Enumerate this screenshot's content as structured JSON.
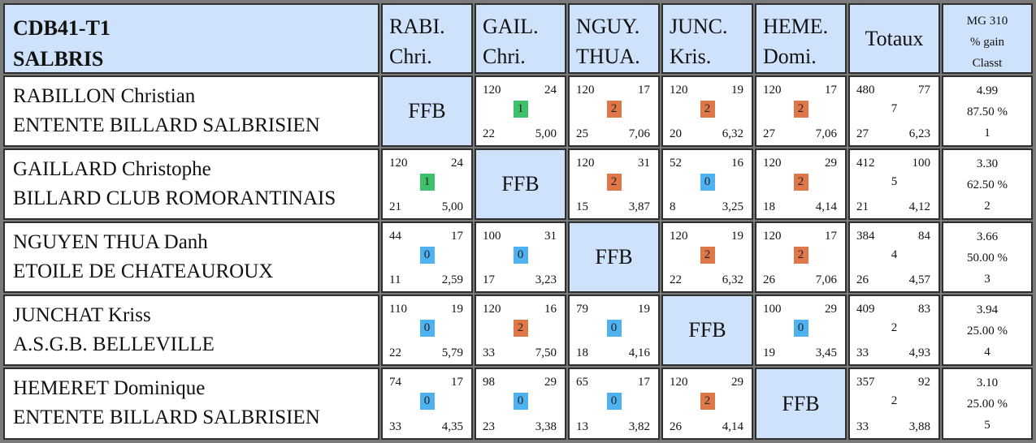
{
  "header": {
    "corner": [
      "CDB41-T1",
      "SALBRIS"
    ],
    "columns": [
      [
        "RABI.",
        "Chri."
      ],
      [
        "GAIL.",
        "Chri."
      ],
      [
        "NGUY.",
        "THUA."
      ],
      [
        "JUNC.",
        "Kris."
      ],
      [
        "HEME.",
        "Domi."
      ]
    ],
    "totals_label": "Totaux",
    "mg_lines": [
      "MG 310",
      "% gain",
      "Classt"
    ]
  },
  "ffb_label": "FFB",
  "badge_colors": {
    "0": "#4eb2f0",
    "1": "#3dc16a",
    "2": "#e07748"
  },
  "rows": [
    {
      "name": "RABILLON Christian",
      "club": "ENTENTE BILLARD SALBRISIEN",
      "matches": [
        null,
        {
          "points": "120",
          "series": "24",
          "result": "1",
          "innings": "22",
          "avg": "5,00"
        },
        {
          "points": "120",
          "series": "17",
          "result": "2",
          "innings": "25",
          "avg": "7,06"
        },
        {
          "points": "120",
          "series": "19",
          "result": "2",
          "innings": "20",
          "avg": "6,32"
        },
        {
          "points": "120",
          "series": "17",
          "result": "2",
          "innings": "27",
          "avg": "7,06"
        }
      ],
      "totals": {
        "points": "480",
        "series": "77",
        "mid": "7",
        "innings": "27",
        "avg": "6,23"
      },
      "result": {
        "mg": "4.99",
        "pct": "87.50 %",
        "rank": "1"
      }
    },
    {
      "name": "GAILLARD Christophe",
      "club": "BILLARD CLUB ROMORANTINAIS",
      "matches": [
        {
          "points": "120",
          "series": "24",
          "result": "1",
          "innings": "21",
          "avg": "5,00"
        },
        null,
        {
          "points": "120",
          "series": "31",
          "result": "2",
          "innings": "15",
          "avg": "3,87"
        },
        {
          "points": "52",
          "series": "16",
          "result": "0",
          "innings": "8",
          "avg": "3,25"
        },
        {
          "points": "120",
          "series": "29",
          "result": "2",
          "innings": "18",
          "avg": "4,14"
        }
      ],
      "totals": {
        "points": "412",
        "series": "100",
        "mid": "5",
        "innings": "21",
        "avg": "4,12"
      },
      "result": {
        "mg": "3.30",
        "pct": "62.50 %",
        "rank": "2"
      }
    },
    {
      "name": "NGUYEN THUA Danh",
      "club": "ETOILE DE CHATEAUROUX",
      "matches": [
        {
          "points": "44",
          "series": "17",
          "result": "0",
          "innings": "11",
          "avg": "2,59"
        },
        {
          "points": "100",
          "series": "31",
          "result": "0",
          "innings": "17",
          "avg": "3,23"
        },
        null,
        {
          "points": "120",
          "series": "19",
          "result": "2",
          "innings": "22",
          "avg": "6,32"
        },
        {
          "points": "120",
          "series": "17",
          "result": "2",
          "innings": "26",
          "avg": "7,06"
        }
      ],
      "totals": {
        "points": "384",
        "series": "84",
        "mid": "4",
        "innings": "26",
        "avg": "4,57"
      },
      "result": {
        "mg": "3.66",
        "pct": "50.00 %",
        "rank": "3"
      }
    },
    {
      "name": "JUNCHAT Kriss",
      "club": "A.S.G.B. BELLEVILLE",
      "matches": [
        {
          "points": "110",
          "series": "19",
          "result": "0",
          "innings": "22",
          "avg": "5,79"
        },
        {
          "points": "120",
          "series": "16",
          "result": "2",
          "innings": "33",
          "avg": "7,50"
        },
        {
          "points": "79",
          "series": "19",
          "result": "0",
          "innings": "18",
          "avg": "4,16"
        },
        null,
        {
          "points": "100",
          "series": "29",
          "result": "0",
          "innings": "19",
          "avg": "3,45"
        }
      ],
      "totals": {
        "points": "409",
        "series": "83",
        "mid": "2",
        "innings": "33",
        "avg": "4,93"
      },
      "result": {
        "mg": "3.94",
        "pct": "25.00 %",
        "rank": "4"
      }
    },
    {
      "name": "HEMERET Dominique",
      "club": "ENTENTE BILLARD SALBRISIEN",
      "matches": [
        {
          "points": "74",
          "series": "17",
          "result": "0",
          "innings": "33",
          "avg": "4,35"
        },
        {
          "points": "98",
          "series": "29",
          "result": "0",
          "innings": "23",
          "avg": "3,38"
        },
        {
          "points": "65",
          "series": "17",
          "result": "0",
          "innings": "13",
          "avg": "3,82"
        },
        {
          "points": "120",
          "series": "29",
          "result": "2",
          "innings": "26",
          "avg": "4,14"
        },
        null
      ],
      "totals": {
        "points": "357",
        "series": "92",
        "mid": "2",
        "innings": "33",
        "avg": "3,88"
      },
      "result": {
        "mg": "3.10",
        "pct": "25.00 %",
        "rank": "5"
      }
    }
  ]
}
